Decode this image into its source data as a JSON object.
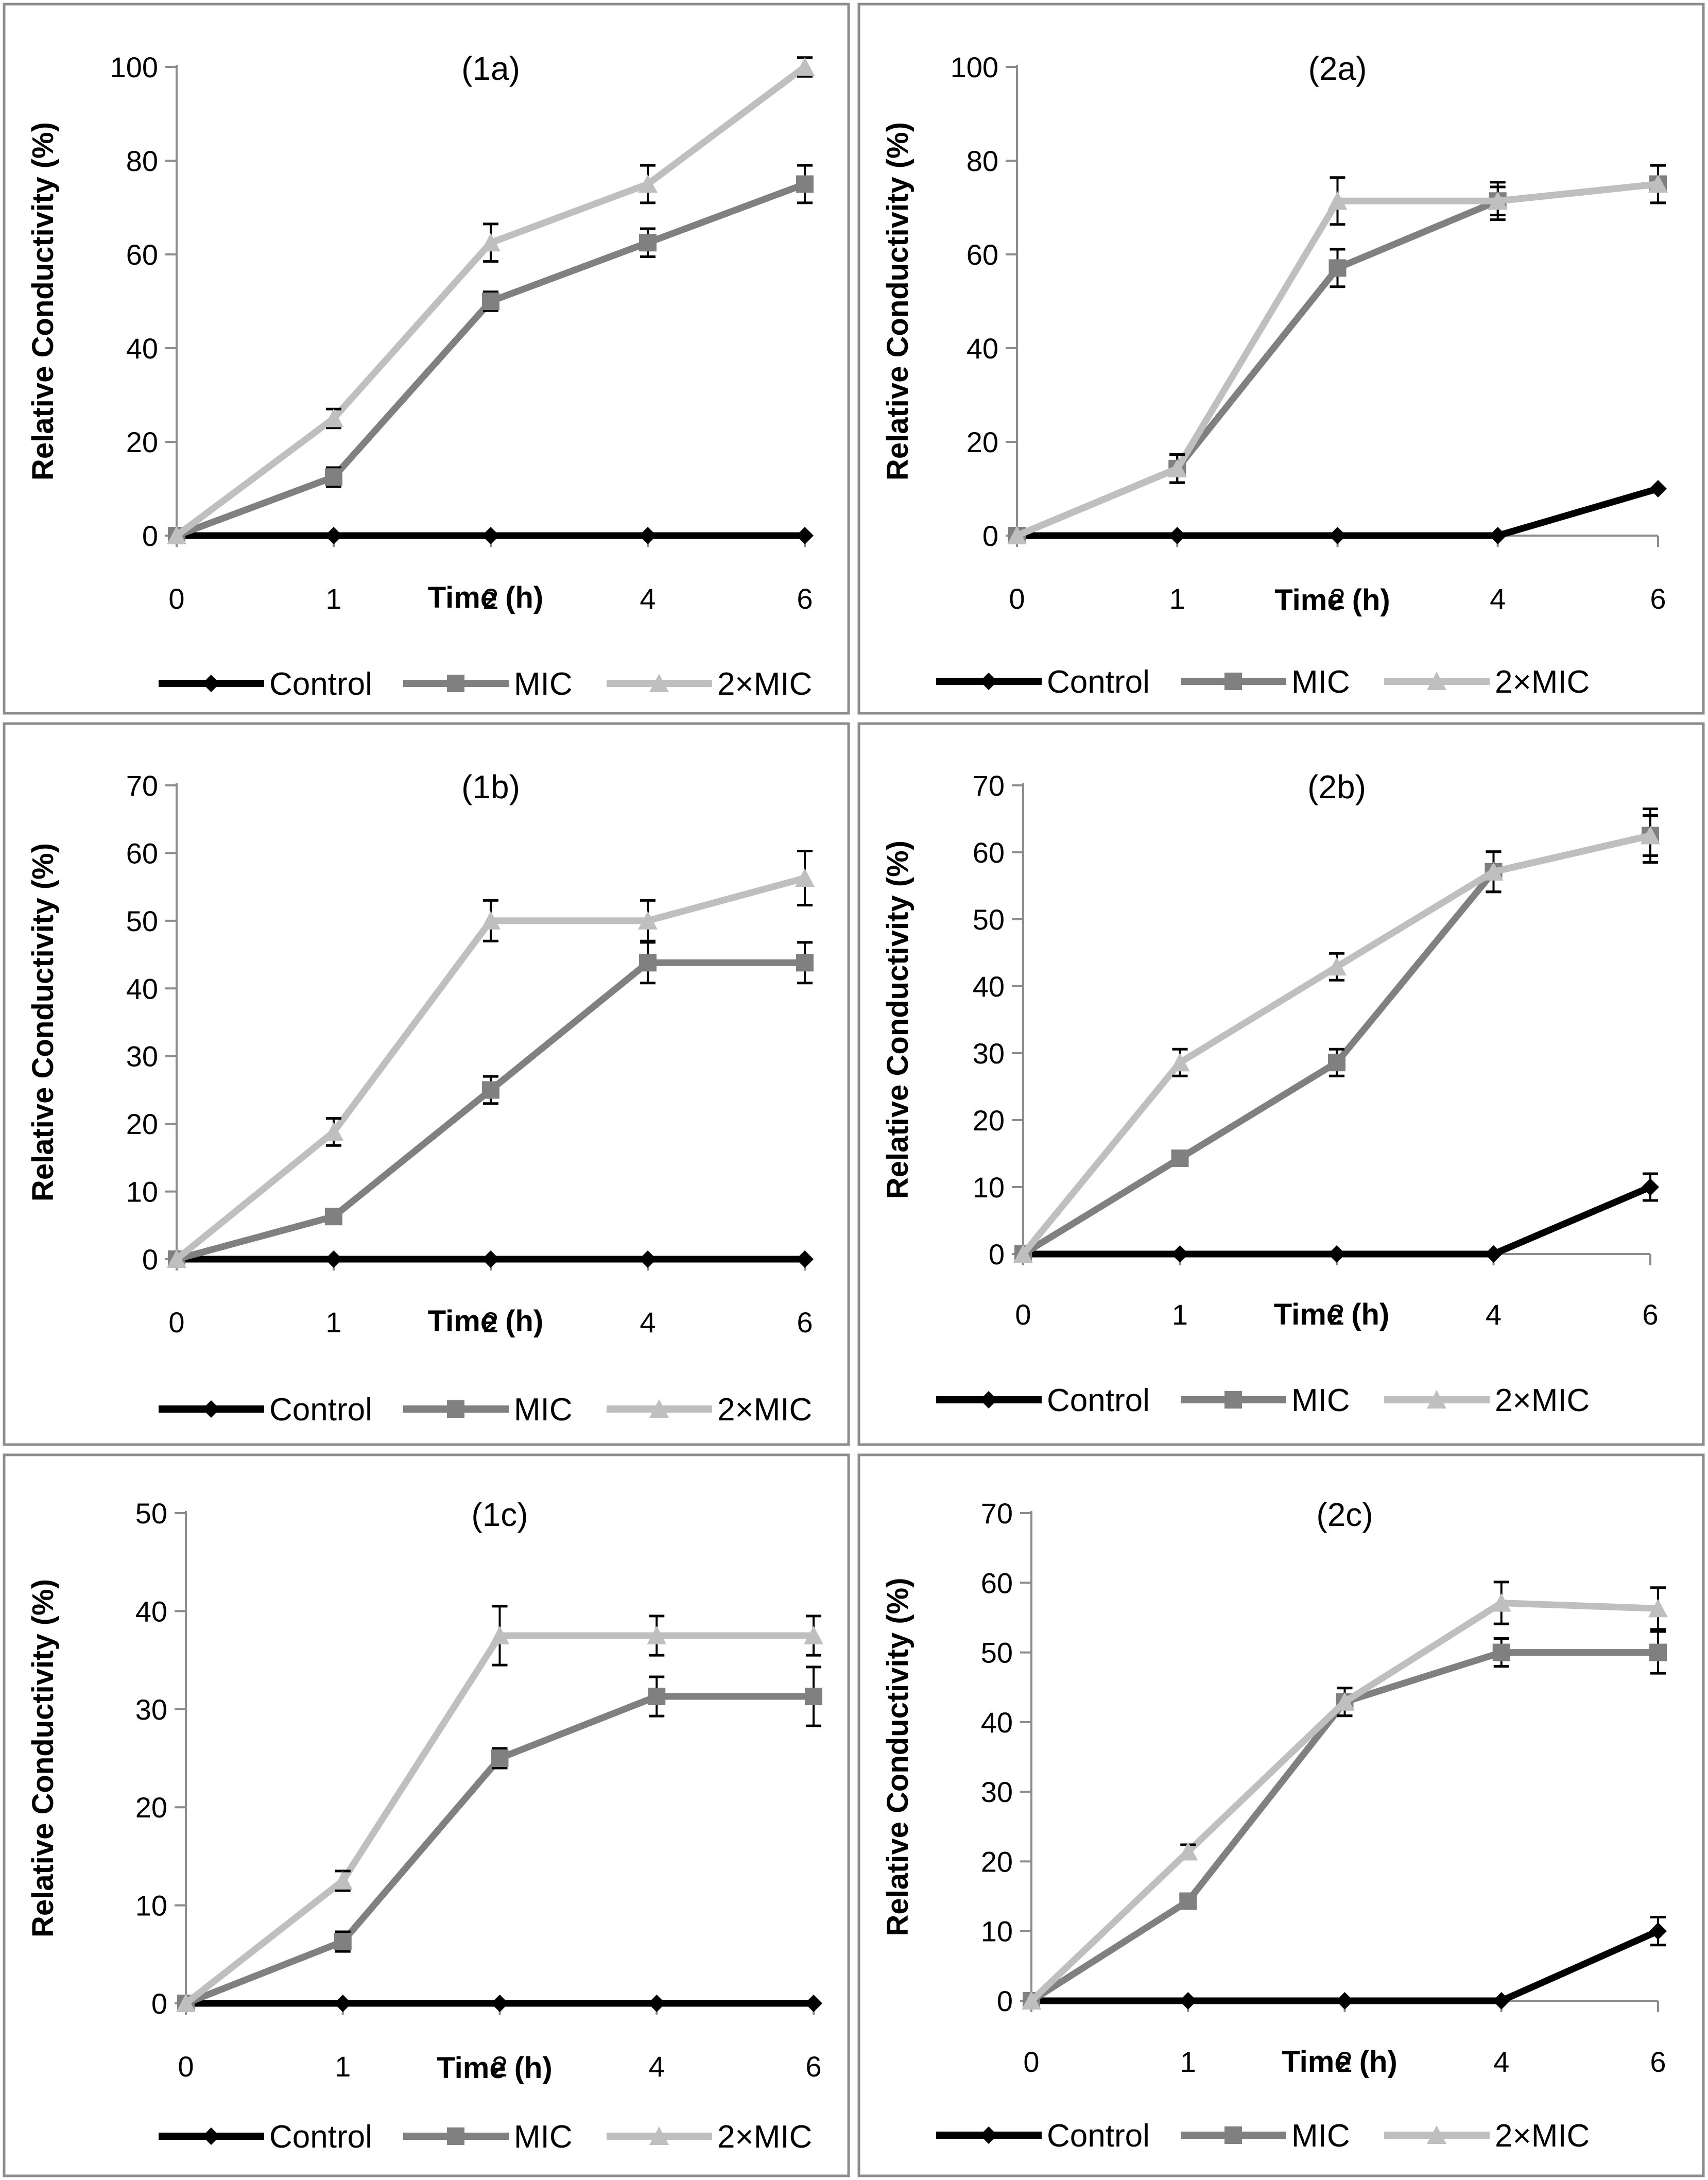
{
  "colors": {
    "Control": "#000000",
    "MIC": "#808080",
    "2×MIC": "#bfbfbf",
    "frame": "#8c8c8c",
    "axis": "#8c8c8c",
    "error_bar": "#000000"
  },
  "markers": {
    "Control": "diamond",
    "MIC": "square",
    "2×MIC": "triangle"
  },
  "chart_data": [
    {
      "type": "line",
      "title": "(1a)",
      "xlabel": "Time (h)",
      "ylabel": "Relative Conductivity (%)",
      "categories": [
        "0",
        "1",
        "2",
        "4",
        "6"
      ],
      "ylim": [
        0,
        100
      ],
      "ystep": 20,
      "series": [
        {
          "name": "Control",
          "values": [
            0,
            0,
            0,
            0,
            0
          ],
          "errors": [
            0,
            0,
            0,
            0,
            0
          ]
        },
        {
          "name": "MIC",
          "values": [
            0,
            12.5,
            50,
            62.5,
            75
          ],
          "errors": [
            0,
            2,
            2,
            3,
            4
          ]
        },
        {
          "name": "2×MIC",
          "values": [
            0,
            25,
            62.5,
            75,
            100
          ],
          "errors": [
            0,
            2,
            4,
            4,
            2
          ]
        }
      ]
    },
    {
      "type": "line",
      "title": "(2a)",
      "xlabel": "Time (h)",
      "ylabel": "Relative Conductivity (%)",
      "categories": [
        "0",
        "1",
        "2",
        "4",
        "6"
      ],
      "ylim": [
        0,
        100
      ],
      "ystep": 20,
      "series": [
        {
          "name": "Control",
          "values": [
            0,
            0,
            0,
            0,
            10
          ],
          "errors": [
            1,
            0,
            0,
            0,
            0
          ]
        },
        {
          "name": "MIC",
          "values": [
            0,
            14.3,
            57.1,
            71.4,
            75
          ],
          "errors": [
            0,
            3,
            4,
            4,
            4
          ]
        },
        {
          "name": "2×MIC",
          "values": [
            0,
            14.3,
            71.4,
            71.4,
            75
          ],
          "errors": [
            0,
            3,
            5,
            3,
            4
          ]
        }
      ]
    },
    {
      "type": "line",
      "title": "(1b)",
      "xlabel": "Time (h)",
      "ylabel": "Relative Conductivity (%)",
      "categories": [
        "0",
        "1",
        "2",
        "4",
        "6"
      ],
      "ylim": [
        0,
        70
      ],
      "ystep": 10,
      "series": [
        {
          "name": "Control",
          "values": [
            0,
            0,
            0,
            0,
            0
          ],
          "errors": [
            0,
            0,
            0,
            0,
            0
          ]
        },
        {
          "name": "MIC",
          "values": [
            0,
            6.3,
            25,
            43.8,
            43.8
          ],
          "errors": [
            0,
            1,
            2,
            3,
            3
          ]
        },
        {
          "name": "2×MIC",
          "values": [
            0,
            18.8,
            50,
            50,
            56.3
          ],
          "errors": [
            0,
            2,
            3,
            3,
            4
          ]
        }
      ]
    },
    {
      "type": "line",
      "title": "(2b)",
      "xlabel": "Time (h)",
      "ylabel": "Relative Conductivity (%)",
      "categories": [
        "0",
        "1",
        "2",
        "4",
        "6"
      ],
      "ylim": [
        0,
        70
      ],
      "ystep": 10,
      "series": [
        {
          "name": "Control",
          "values": [
            0,
            0,
            0,
            0,
            10
          ],
          "errors": [
            0,
            0,
            0,
            0,
            2
          ]
        },
        {
          "name": "MIC",
          "values": [
            0,
            14.3,
            28.6,
            57.1,
            62.5
          ],
          "errors": [
            0,
            1,
            2,
            3,
            3
          ]
        },
        {
          "name": "2×MIC",
          "values": [
            0,
            28.6,
            42.9,
            57.1,
            62.5
          ],
          "errors": [
            0,
            2,
            2,
            3,
            4
          ]
        }
      ]
    },
    {
      "type": "line",
      "title": "(1c)",
      "xlabel": "Time (h)",
      "ylabel": "Relative Conductivity (%)",
      "categories": [
        "0",
        "1",
        "2",
        "4",
        "6"
      ],
      "ylim": [
        0,
        50
      ],
      "ystep": 10,
      "series": [
        {
          "name": "Control",
          "values": [
            0,
            0,
            0,
            0,
            0
          ],
          "errors": [
            0,
            0,
            0,
            0,
            0
          ]
        },
        {
          "name": "MIC",
          "values": [
            0,
            6.3,
            25,
            31.3,
            31.3
          ],
          "errors": [
            0,
            1,
            1,
            2,
            3
          ]
        },
        {
          "name": "2×MIC",
          "values": [
            0,
            12.5,
            37.5,
            37.5,
            37.5
          ],
          "errors": [
            0,
            1,
            3,
            2,
            2
          ]
        }
      ]
    },
    {
      "type": "line",
      "title": "(2c)",
      "xlabel": "Time (h)",
      "ylabel": "Relative Conductivity (%)",
      "categories": [
        "0",
        "1",
        "2",
        "4",
        "6"
      ],
      "ylim": [
        0,
        70
      ],
      "ystep": 10,
      "series": [
        {
          "name": "Control",
          "values": [
            0,
            0,
            0,
            0,
            10
          ],
          "errors": [
            0,
            0,
            0,
            0,
            2
          ]
        },
        {
          "name": "MIC",
          "values": [
            0,
            14.3,
            42.9,
            50,
            50
          ],
          "errors": [
            0,
            1,
            2,
            2,
            3
          ]
        },
        {
          "name": "2×MIC",
          "values": [
            0,
            21.4,
            42.9,
            57.1,
            56.3
          ],
          "errors": [
            0,
            1,
            2,
            3,
            3
          ]
        }
      ]
    }
  ]
}
